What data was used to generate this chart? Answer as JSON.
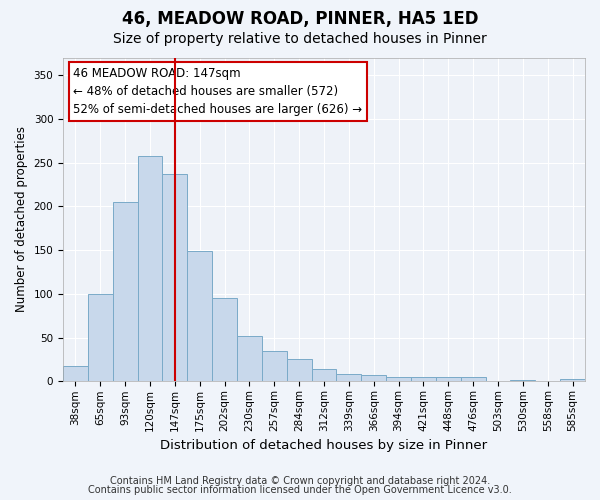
{
  "title": "46, MEADOW ROAD, PINNER, HA5 1ED",
  "subtitle": "Size of property relative to detached houses in Pinner",
  "xlabel": "Distribution of detached houses by size in Pinner",
  "ylabel": "Number of detached properties",
  "categories": [
    "38sqm",
    "65sqm",
    "93sqm",
    "120sqm",
    "147sqm",
    "175sqm",
    "202sqm",
    "230sqm",
    "257sqm",
    "284sqm",
    "312sqm",
    "339sqm",
    "366sqm",
    "394sqm",
    "421sqm",
    "448sqm",
    "476sqm",
    "503sqm",
    "530sqm",
    "558sqm",
    "585sqm"
  ],
  "values": [
    18,
    100,
    205,
    257,
    237,
    149,
    95,
    52,
    35,
    26,
    14,
    9,
    7,
    5,
    5,
    5,
    5,
    1,
    2,
    1,
    3
  ],
  "bar_color": "#c8d8eb",
  "bar_edge_color": "#7aaac8",
  "vline_x_index": 4,
  "vline_color": "#cc0000",
  "annotation_line1": "46 MEADOW ROAD: 147sqm",
  "annotation_line2": "← 48% of detached houses are smaller (572)",
  "annotation_line3": "52% of semi-detached houses are larger (626) →",
  "annotation_box_color": "#ffffff",
  "annotation_box_edge_color": "#cc0000",
  "ylim": [
    0,
    370
  ],
  "yticks": [
    0,
    50,
    100,
    150,
    200,
    250,
    300,
    350
  ],
  "bg_color": "#f0f4fa",
  "plot_bg_color": "#eef2f8",
  "footer_line1": "Contains HM Land Registry data © Crown copyright and database right 2024.",
  "footer_line2": "Contains public sector information licensed under the Open Government Licence v3.0.",
  "title_fontsize": 12,
  "subtitle_fontsize": 10,
  "xlabel_fontsize": 9.5,
  "ylabel_fontsize": 8.5,
  "tick_fontsize": 7.5,
  "annotation_fontsize": 8.5,
  "footer_fontsize": 7
}
